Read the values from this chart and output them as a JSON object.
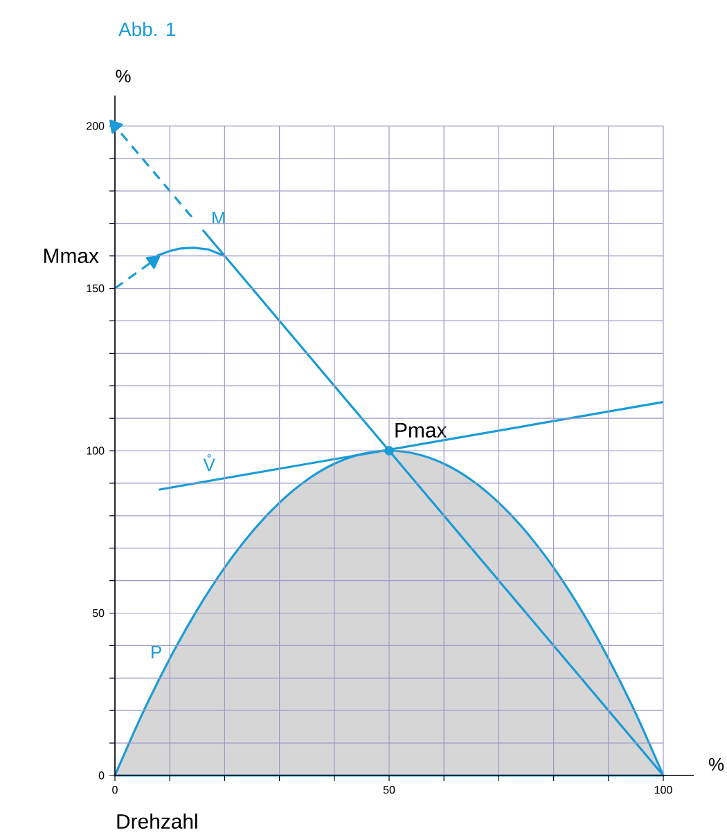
{
  "chart_data": {
    "type": "line",
    "title": "Abb. 1",
    "xlabel": "%",
    "ylabel": "%",
    "xlim": [
      0,
      100
    ],
    "ylim": [
      0,
      200
    ],
    "xticks": [
      0,
      {
        "value": 10,
        "label": null
      },
      {
        "value": 20,
        "label": null
      },
      {
        "value": 30,
        "label": null
      },
      {
        "value": 40,
        "label": null
      },
      50,
      {
        "value": 60,
        "label": null
      },
      {
        "value": 70,
        "label": null
      },
      {
        "value": 80,
        "label": null
      },
      {
        "value": 90,
        "label": null
      },
      100
    ],
    "yticks": [
      0,
      {
        "value": 10,
        "label": null
      },
      {
        "value": 20,
        "label": null
      },
      {
        "value": 30,
        "label": null
      },
      {
        "value": 40,
        "label": null
      },
      50,
      {
        "value": 60,
        "label": null
      },
      {
        "value": 70,
        "label": null
      },
      {
        "value": 80,
        "label": null
      },
      {
        "value": 90,
        "label": null
      },
      100,
      {
        "value": 110,
        "label": null
      },
      {
        "value": 120,
        "label": null
      },
      {
        "value": 130,
        "label": null
      },
      {
        "value": 140,
        "label": null
      },
      150,
      {
        "value": 160,
        "label": null
      },
      {
        "value": 170,
        "label": null
      },
      {
        "value": 180,
        "label": null
      },
      {
        "value": 190,
        "label": null
      },
      200
    ],
    "grid": true,
    "series": [
      {
        "type": "area",
        "name": "P",
        "color": "#1a9bd7",
        "x": [
          0,
          5,
          10,
          15,
          20,
          25,
          30,
          35,
          40,
          45,
          50,
          55,
          60,
          65,
          70,
          75,
          80,
          85,
          90,
          95,
          100
        ],
        "values": [
          0,
          19,
          36,
          51,
          64,
          75,
          84,
          91,
          96,
          99,
          100,
          99,
          96,
          91,
          84,
          75,
          64,
          51,
          36,
          19,
          0
        ]
      },
      {
        "name": "M",
        "color": "#1a9bd7",
        "x": [
          16,
          20,
          50,
          100
        ],
        "values": [
          168,
          160,
          100,
          0
        ]
      },
      {
        "line_style": "dashed",
        "marker": "triangle",
        "color": "#1a9bd7",
        "x": [
          14,
          0
        ],
        "values": [
          172,
          200
        ]
      },
      {
        "color": "#1a9bd7",
        "x": [
          7.6,
          10,
          12,
          14.4,
          17,
          20
        ],
        "values": [
          160,
          161.5,
          162.3,
          162.5,
          162,
          160
        ]
      },
      {
        "line_style": "dashed",
        "marker": "triangle",
        "color": "#1a9bd7",
        "x": [
          0,
          7
        ],
        "values": [
          150,
          158.5
        ]
      },
      {
        "name": "V̊",
        "color": "#1a9bd7",
        "x": [
          8,
          100
        ],
        "values": [
          88,
          115
        ]
      },
      {
        "type": "scatter",
        "marker": "circle",
        "color": "#1a9bd7",
        "x": [
          50
        ],
        "values": [
          100
        ]
      }
    ],
    "annotations": [
      "Mmax",
      {
        "text": "Pmax",
        "x": 50,
        "y": 100
      },
      "Drehzahl"
    ]
  }
}
